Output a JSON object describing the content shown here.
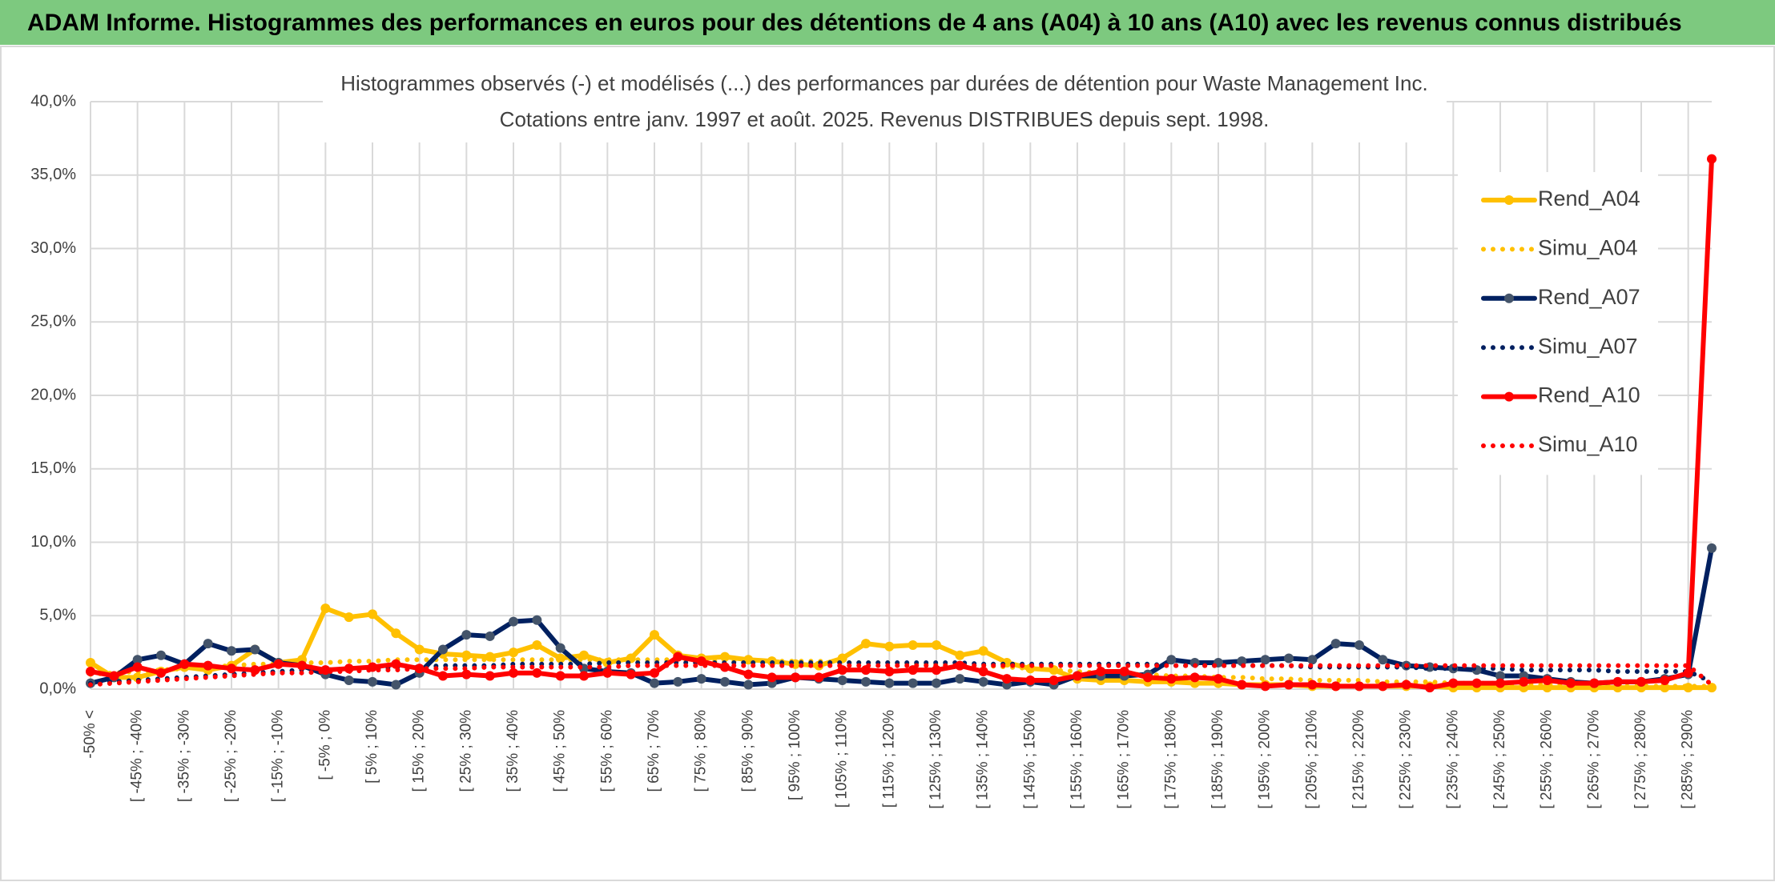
{
  "page_title": "ADAM Informe. Histogrammes des performances en euros pour des détentions de 4 ans (A04) à 10 ans (A10) avec les revenus connus distribués",
  "chart_data": {
    "type": "line",
    "title": "Histogrammes observés (-) et modélisés (...) des performances par durées de détention pour Waste Management Inc.",
    "subtitle": "Cotations entre janv. 1997 et août. 2025. Revenus DISTRIBUES depuis sept. 1998.",
    "categories": [
      "-50% <",
      null,
      "[ -45% ; -40%",
      null,
      "[ -35% ; -30%",
      null,
      "[ -25% ; -20%",
      null,
      "[ -15% ; -10%",
      null,
      "[ -5% ; 0%",
      null,
      "[ 5% ; 10%",
      null,
      "[ 15% ; 20%",
      null,
      "[ 25% ; 30%",
      null,
      "[ 35% ; 40%",
      null,
      "[ 45% ; 50%",
      null,
      "[ 55% ; 60%",
      null,
      "[ 65% ; 70%",
      null,
      "[ 75% ; 80%",
      null,
      "[ 85% ; 90%",
      null,
      "[ 95% ; 100%",
      null,
      "[ 105% ; 110%",
      null,
      "[ 115% ; 120%",
      null,
      "[ 125% ; 130%",
      null,
      "[ 135% ; 140%",
      null,
      "[ 145% ; 150%",
      null,
      "[ 155% ; 160%",
      null,
      "[ 165% ; 170%",
      null,
      "[ 175% ; 180%",
      null,
      "[ 185% ; 190%",
      null,
      "[ 195% ; 200%",
      null,
      "[ 205% ; 210%",
      null,
      "[ 215% ; 220%",
      null,
      "[ 225% ; 230%",
      null,
      "[ 235% ; 240%",
      null,
      "[ 245% ; 250%",
      null,
      "[ 255% ; 260%",
      null,
      "[ 265% ; 270%",
      null,
      "[ 275% ; 280%",
      null,
      "[ 285% ; 290%",
      null
    ],
    "series": [
      {
        "name": "Rend_A04",
        "color": "#ffc000",
        "style": "solid",
        "markers": true,
        "values": [
          1.8,
          0.8,
          0.8,
          1.2,
          1.5,
          1.3,
          1.6,
          2.7,
          1.8,
          2.0,
          5.5,
          4.9,
          5.1,
          3.8,
          2.7,
          2.4,
          2.3,
          2.2,
          2.5,
          3.0,
          2.1,
          2.3,
          1.8,
          2.1,
          3.7,
          2.3,
          2.1,
          2.2,
          2.0,
          1.9,
          1.7,
          1.6,
          2.1,
          3.1,
          2.9,
          3.0,
          3.0,
          2.3,
          2.6,
          1.8,
          1.4,
          1.3,
          0.7,
          0.6,
          0.6,
          0.5,
          0.5,
          0.4,
          0.4,
          0.3,
          0.3,
          0.3,
          0.2,
          0.2,
          0.2,
          0.2,
          0.2,
          0.2,
          0.1,
          0.1,
          0.1,
          0.1,
          0.1,
          0.1,
          0.1,
          0.1,
          0.1,
          0.1,
          0.1,
          0.1
        ]
      },
      {
        "name": "Simu_A04",
        "color": "#ffc000",
        "style": "dotted",
        "markers": false,
        "values": [
          1.0,
          1.1,
          1.2,
          1.3,
          1.4,
          1.5,
          1.6,
          1.7,
          1.7,
          1.8,
          1.8,
          1.9,
          1.9,
          2.0,
          2.0,
          2.0,
          2.0,
          2.0,
          2.0,
          2.0,
          2.0,
          2.0,
          2.0,
          2.0,
          2.0,
          2.0,
          1.9,
          1.9,
          1.9,
          1.9,
          1.9,
          1.9,
          1.8,
          1.8,
          1.8,
          1.7,
          1.7,
          1.6,
          1.6,
          1.5,
          1.4,
          1.3,
          1.2,
          1.1,
          1.0,
          1.0,
          0.9,
          0.9,
          0.8,
          0.8,
          0.7,
          0.7,
          0.6,
          0.6,
          0.6,
          0.5,
          0.5,
          0.5,
          0.4,
          0.4,
          0.4,
          0.3,
          0.3,
          0.3,
          0.3,
          0.2,
          0.2,
          0.2,
          0.2,
          0.2
        ]
      },
      {
        "name": "Rend_A07",
        "color": "#002060",
        "marker_color": "#44546a",
        "style": "solid",
        "markers": true,
        "values": [
          0.4,
          0.8,
          2.0,
          2.3,
          1.7,
          3.1,
          2.6,
          2.7,
          1.8,
          1.6,
          1.0,
          0.6,
          0.5,
          0.3,
          1.1,
          2.7,
          3.7,
          3.6,
          4.6,
          4.7,
          2.8,
          1.4,
          1.2,
          1.1,
          0.4,
          0.5,
          0.7,
          0.5,
          0.3,
          0.4,
          0.8,
          0.7,
          0.6,
          0.5,
          0.4,
          0.4,
          0.4,
          0.7,
          0.5,
          0.3,
          0.5,
          0.3,
          0.9,
          0.9,
          0.9,
          1.0,
          2.0,
          1.8,
          1.8,
          1.9,
          2.0,
          2.1,
          2.0,
          3.1,
          3.0,
          2.0,
          1.6,
          1.5,
          1.4,
          1.3,
          0.9,
          0.9,
          0.7,
          0.5,
          0.4,
          0.5,
          0.5,
          0.7,
          1.0,
          9.6
        ]
      },
      {
        "name": "Simu_A07",
        "color": "#002060",
        "style": "dotted",
        "markers": false,
        "values": [
          0.4,
          0.5,
          0.6,
          0.7,
          0.8,
          0.9,
          1.0,
          1.1,
          1.2,
          1.3,
          1.3,
          1.4,
          1.4,
          1.5,
          1.5,
          1.6,
          1.6,
          1.6,
          1.7,
          1.7,
          1.7,
          1.7,
          1.8,
          1.8,
          1.8,
          1.8,
          1.8,
          1.8,
          1.8,
          1.8,
          1.8,
          1.8,
          1.8,
          1.8,
          1.8,
          1.8,
          1.8,
          1.8,
          1.7,
          1.7,
          1.7,
          1.7,
          1.7,
          1.7,
          1.7,
          1.7,
          1.6,
          1.6,
          1.6,
          1.6,
          1.6,
          1.6,
          1.5,
          1.5,
          1.5,
          1.5,
          1.5,
          1.4,
          1.4,
          1.4,
          1.4,
          1.3,
          1.3,
          1.3,
          1.3,
          1.2,
          1.2,
          1.2,
          1.2,
          0.5
        ]
      },
      {
        "name": "Rend_A10",
        "color": "#ff0000",
        "style": "solid",
        "markers": true,
        "values": [
          1.2,
          0.9,
          1.5,
          1.1,
          1.7,
          1.6,
          1.4,
          1.3,
          1.7,
          1.6,
          1.3,
          1.4,
          1.5,
          1.7,
          1.4,
          0.9,
          1.0,
          0.9,
          1.1,
          1.1,
          0.9,
          0.9,
          1.1,
          1.0,
          1.1,
          2.2,
          1.9,
          1.5,
          1.0,
          0.8,
          0.8,
          0.8,
          1.3,
          1.3,
          1.2,
          1.3,
          1.3,
          1.6,
          1.2,
          0.7,
          0.6,
          0.6,
          0.9,
          1.2,
          1.2,
          0.8,
          0.7,
          0.8,
          0.7,
          0.3,
          0.2,
          0.3,
          0.3,
          0.2,
          0.2,
          0.2,
          0.3,
          0.1,
          0.4,
          0.4,
          0.4,
          0.5,
          0.6,
          0.4,
          0.4,
          0.5,
          0.5,
          0.6,
          1.1,
          36.1
        ]
      },
      {
        "name": "Simu_A10",
        "color": "#ff0000",
        "style": "dotted",
        "markers": false,
        "values": [
          0.3,
          0.4,
          0.5,
          0.6,
          0.7,
          0.8,
          0.9,
          1.0,
          1.1,
          1.1,
          1.2,
          1.2,
          1.3,
          1.3,
          1.4,
          1.4,
          1.4,
          1.5,
          1.5,
          1.5,
          1.5,
          1.5,
          1.5,
          1.6,
          1.6,
          1.6,
          1.6,
          1.6,
          1.6,
          1.6,
          1.6,
          1.6,
          1.6,
          1.6,
          1.6,
          1.6,
          1.6,
          1.6,
          1.6,
          1.6,
          1.6,
          1.6,
          1.6,
          1.6,
          1.6,
          1.6,
          1.6,
          1.6,
          1.6,
          1.6,
          1.6,
          1.6,
          1.6,
          1.6,
          1.6,
          1.6,
          1.6,
          1.6,
          1.6,
          1.6,
          1.6,
          1.6,
          1.6,
          1.6,
          1.6,
          1.6,
          1.6,
          1.6,
          1.6,
          0.3
        ]
      }
    ],
    "ylim": [
      0,
      40
    ],
    "yticks": [
      {
        "value": 0,
        "label": "0,0%"
      },
      {
        "value": 5,
        "label": "5,0%"
      },
      {
        "value": 10,
        "label": "10,0%"
      },
      {
        "value": 15,
        "label": "15,0%"
      },
      {
        "value": 20,
        "label": "20,0%"
      },
      {
        "value": 25,
        "label": "25,0%"
      },
      {
        "value": 30,
        "label": "30,0%"
      },
      {
        "value": 35,
        "label": "35,0%"
      },
      {
        "value": 40,
        "label": "40,0%"
      }
    ],
    "grid": true,
    "legend": "upper right"
  }
}
